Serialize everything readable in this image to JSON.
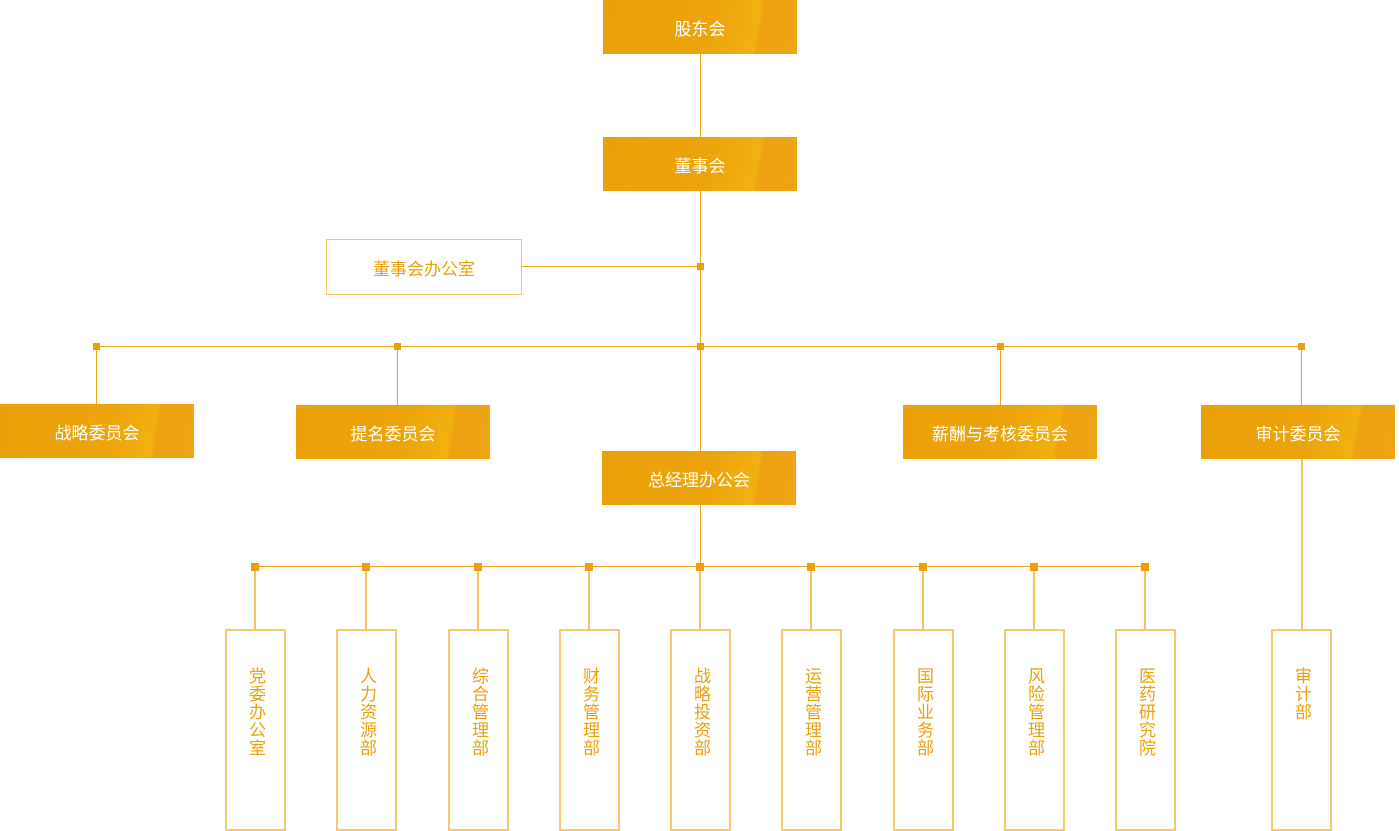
{
  "colors": {
    "fill": "#eda40c",
    "line": "#eda416",
    "text": "#ec9f08",
    "border": "#f6c870"
  },
  "top": {
    "shareholders": "股东会",
    "board": "董事会",
    "board_office": "董事会办公室",
    "gm_office": "总经理办公会"
  },
  "committees": [
    "战略委员会",
    "提名委员会",
    "薪酬与考核委员会",
    "审计委员会"
  ],
  "departments": [
    "党委办公室",
    "人力资源部",
    "综合管理部",
    "财务管理部",
    "战略投资部",
    "运营管理部",
    "国际业务部",
    "风险管理部",
    "医药研究院"
  ],
  "audit_dept": "审计部"
}
